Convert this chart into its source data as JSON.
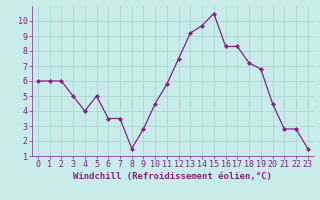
{
  "x": [
    0,
    1,
    2,
    3,
    4,
    5,
    6,
    7,
    8,
    9,
    10,
    11,
    12,
    13,
    14,
    15,
    16,
    17,
    18,
    19,
    20,
    21,
    22,
    23
  ],
  "y": [
    6.0,
    6.0,
    6.0,
    5.0,
    4.0,
    5.0,
    3.5,
    3.5,
    1.5,
    2.8,
    4.5,
    5.8,
    7.5,
    9.2,
    9.7,
    10.5,
    8.3,
    8.3,
    7.2,
    6.8,
    4.5,
    2.8,
    2.8,
    1.5
  ],
  "line_color": "#882288",
  "marker_color": "#882288",
  "bg_color": "#c8ecea",
  "grid_color": "#aad8d4",
  "xlabel": "Windchill (Refroidissement éolien,°C)",
  "xlabel_color": "#882288",
  "tick_color": "#882288",
  "ylim": [
    1,
    11
  ],
  "yticks": [
    1,
    2,
    3,
    4,
    5,
    6,
    7,
    8,
    9,
    10
  ],
  "xticks": [
    0,
    1,
    2,
    3,
    4,
    5,
    6,
    7,
    8,
    9,
    10,
    11,
    12,
    13,
    14,
    15,
    16,
    17,
    18,
    19,
    20,
    21,
    22,
    23
  ],
  "font_size_tick": 6,
  "font_size_label": 6.5,
  "xlim": [
    -0.5,
    23.5
  ]
}
